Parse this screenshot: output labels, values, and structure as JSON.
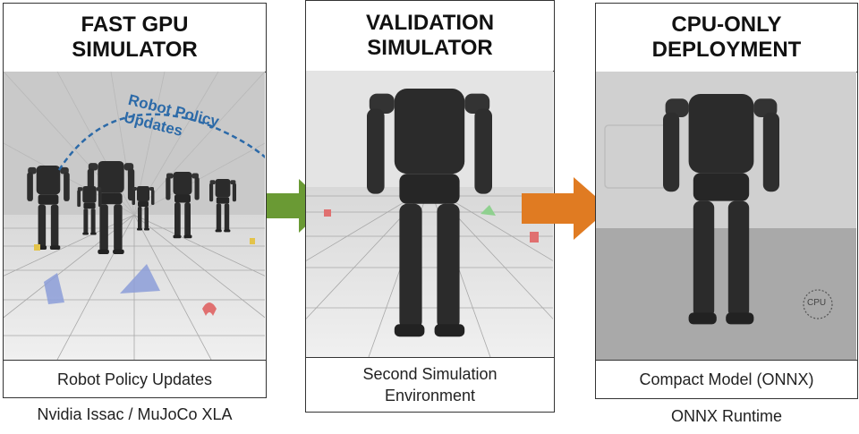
{
  "panels": [
    {
      "title": "FAST GPU\nSIMULATOR",
      "caption": "Robot Policy Updates",
      "subcaption": "Nvidia Issac / MuJoCo XLA",
      "overlay_label": "Robot Policy Updates"
    },
    {
      "title": "VALIDATION\nSIMULATOR",
      "caption": "Second Simulation\nEnvironment"
    },
    {
      "title": "CPU-ONLY\nDEPLOYMENT",
      "caption": "Compact Model (ONNX)",
      "subcaption": "ONNX Runtime",
      "chip_label": "CPU"
    }
  ],
  "colors": {
    "arrow_green": "#6a9a34",
    "arrow_orange": "#e07b22",
    "label_blue": "#2c6aa8",
    "robot": "#2b2b2b"
  }
}
